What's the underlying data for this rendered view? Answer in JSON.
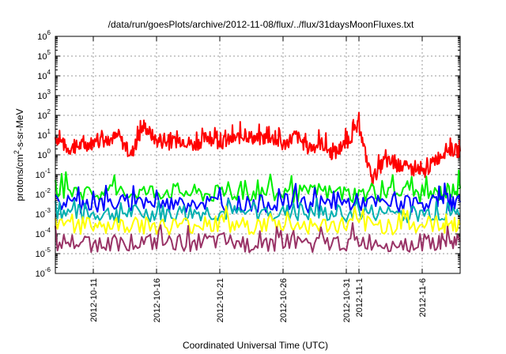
{
  "chart_data": {
    "type": "line",
    "title": "/data/run/goesPlots/archive/2012-11-08/flux/../flux/31daysMoonFluxes.txt",
    "xlabel": "Coordinated Universal Time (UTC)",
    "ylabel": "protons/cm2-s-sr-MeV",
    "y_scale": "log",
    "ylim": [
      1e-06,
      1000000.0
    ],
    "y_ticks": [
      {
        "base": "10",
        "exp": "-6",
        "value": 1e-06
      },
      {
        "base": "10",
        "exp": "-5",
        "value": 1e-05
      },
      {
        "base": "10",
        "exp": "-4",
        "value": 0.0001
      },
      {
        "base": "10",
        "exp": "-3",
        "value": 0.001
      },
      {
        "base": "10",
        "exp": "-2",
        "value": 0.01
      },
      {
        "base": "10",
        "exp": "-1",
        "value": 0.1
      },
      {
        "base": "10",
        "exp": "0",
        "value": 1
      },
      {
        "base": "10",
        "exp": "1",
        "value": 10
      },
      {
        "base": "10",
        "exp": "2",
        "value": 100
      },
      {
        "base": "10",
        "exp": "3",
        "value": 1000
      },
      {
        "base": "10",
        "exp": "4",
        "value": 10000
      },
      {
        "base": "10",
        "exp": "5",
        "value": 100000
      },
      {
        "base": "10",
        "exp": "6",
        "value": 1000000
      }
    ],
    "xlim": [
      "2012-10-08",
      "2012-11-09"
    ],
    "x_ticks": [
      {
        "label": "2012-10-11",
        "date": "2012-10-11"
      },
      {
        "label": "2012-10-16",
        "date": "2012-10-16"
      },
      {
        "label": "2012-10-21",
        "date": "2012-10-21"
      },
      {
        "label": "2012-10-26",
        "date": "2012-10-26"
      },
      {
        "label": "2012-10-31",
        "date": "2012-10-31"
      },
      {
        "label": "2012-11-1",
        "date": "2012-11-01"
      },
      {
        "label": "2012-11-6",
        "date": "2012-11-06"
      }
    ],
    "grid": true,
    "legend": "none",
    "series": [
      {
        "color": "#ff0000",
        "x": [
          "2012-10-08",
          "2012-10-09",
          "2012-10-10",
          "2012-10-11",
          "2012-10-12",
          "2012-10-13",
          "2012-10-14",
          "2012-10-15",
          "2012-10-16",
          "2012-10-17",
          "2012-10-18",
          "2012-10-19",
          "2012-10-20",
          "2012-10-21",
          "2012-10-22",
          "2012-10-23",
          "2012-10-24",
          "2012-10-25",
          "2012-10-26",
          "2012-10-27",
          "2012-10-28",
          "2012-10-29",
          "2012-10-30",
          "2012-10-31",
          "2012-11-01",
          "2012-11-02",
          "2012-11-03",
          "2012-11-04",
          "2012-11-05",
          "2012-11-06",
          "2012-11-07",
          "2012-11-08",
          "2012-11-09"
        ],
        "y": [
          8,
          2,
          3,
          4,
          6,
          8,
          1,
          30,
          5,
          4,
          6,
          3,
          8,
          4,
          6,
          10,
          6,
          8,
          3,
          10,
          2,
          4,
          1,
          4,
          30,
          0.05,
          0.5,
          0.3,
          0.2,
          0.1,
          0.5,
          2,
          1.5
        ]
      },
      {
        "color": "#00ee00",
        "x": [
          "2012-10-08",
          "2012-10-11",
          "2012-10-14",
          "2012-10-17",
          "2012-10-20",
          "2012-10-23",
          "2012-10-26",
          "2012-10-29",
          "2012-11-01",
          "2012-11-04",
          "2012-11-07",
          "2012-11-09"
        ],
        "y": [
          0.02,
          0.01,
          0.012,
          0.015,
          0.01,
          0.012,
          0.01,
          0.012,
          0.01,
          0.012,
          0.01,
          0.02
        ]
      },
      {
        "color": "#0000ff",
        "x": [
          "2012-10-08",
          "2012-10-11",
          "2012-10-14",
          "2012-10-17",
          "2012-10-20",
          "2012-10-23",
          "2012-10-26",
          "2012-10-29",
          "2012-11-01",
          "2012-11-04",
          "2012-11-07",
          "2012-11-09"
        ],
        "y": [
          0.004,
          0.003,
          0.004,
          0.003,
          0.004,
          0.003,
          0.004,
          0.003,
          0.004,
          0.003,
          0.004,
          0.004
        ]
      },
      {
        "color": "#00b0b0",
        "x": [
          "2012-10-08",
          "2012-10-11",
          "2012-10-14",
          "2012-10-17",
          "2012-10-20",
          "2012-10-23",
          "2012-10-26",
          "2012-10-29",
          "2012-11-01",
          "2012-11-04",
          "2012-11-07",
          "2012-11-09"
        ],
        "y": [
          0.0012,
          0.001,
          0.0011,
          0.001,
          0.0012,
          0.001,
          0.0011,
          0.001,
          0.0012,
          0.001,
          0.0011,
          0.001
        ]
      },
      {
        "color": "#ffff00",
        "x": [
          "2012-10-08",
          "2012-10-11",
          "2012-10-14",
          "2012-10-17",
          "2012-10-20",
          "2012-10-23",
          "2012-10-26",
          "2012-10-29",
          "2012-11-01",
          "2012-11-04",
          "2012-11-07",
          "2012-11-09"
        ],
        "y": [
          0.0003,
          0.00025,
          0.0003,
          0.00025,
          0.0003,
          0.00025,
          0.0003,
          0.00025,
          0.0003,
          0.00025,
          0.0003,
          0.0003
        ]
      },
      {
        "color": "#993366",
        "x": [
          "2012-10-08",
          "2012-10-11",
          "2012-10-14",
          "2012-10-17",
          "2012-10-20",
          "2012-10-23",
          "2012-10-26",
          "2012-10-29",
          "2012-11-01",
          "2012-11-04",
          "2012-11-07",
          "2012-11-09"
        ],
        "y": [
          4e-05,
          3e-05,
          4e-05,
          3e-05,
          4e-05,
          3e-05,
          4e-05,
          3e-05,
          4e-05,
          3e-05,
          4e-05,
          4e-05
        ]
      }
    ]
  }
}
